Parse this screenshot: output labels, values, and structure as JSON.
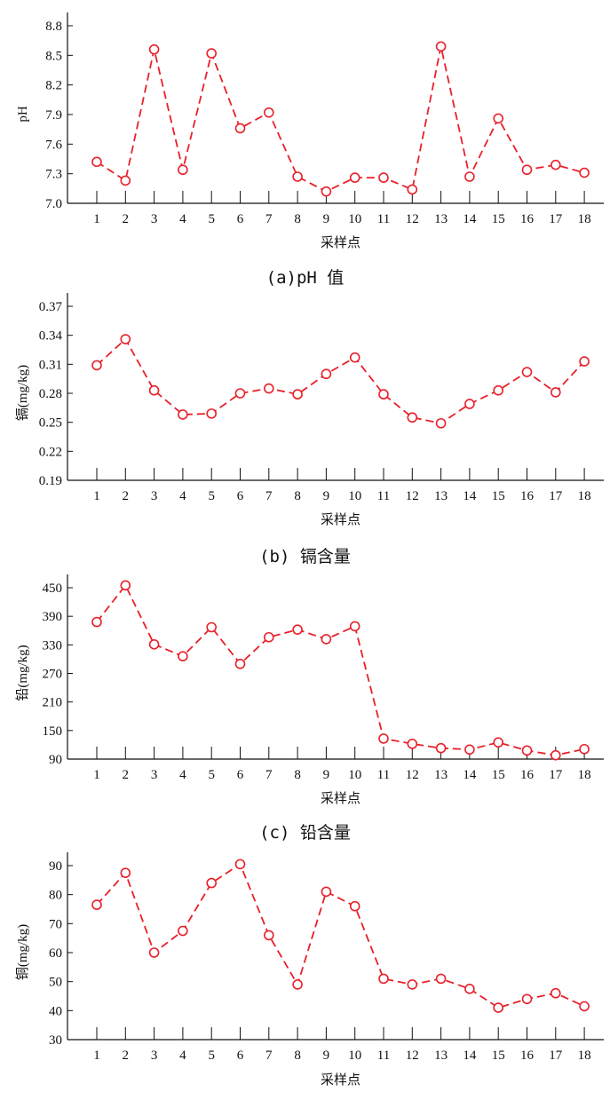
{
  "chart_data": [
    {
      "type": "line",
      "caption": "(a)pH 值",
      "xlabel": "采样点",
      "ylabel": "pH",
      "categories": [
        "1",
        "2",
        "3",
        "4",
        "5",
        "6",
        "7",
        "8",
        "9",
        "10",
        "11",
        "12",
        "13",
        "14",
        "15",
        "16",
        "17",
        "18"
      ],
      "yticks": [
        "7.0",
        "7.3",
        "7.6",
        "7.9",
        "8.2",
        "8.5",
        "8.8"
      ],
      "ylim": [
        7.0,
        8.9
      ],
      "values": [
        7.42,
        7.23,
        8.56,
        7.34,
        8.52,
        7.76,
        7.92,
        7.27,
        7.12,
        7.26,
        7.26,
        7.14,
        8.59,
        7.27,
        7.86,
        7.34,
        7.39,
        7.31
      ],
      "line_color": "#e8202a",
      "line_style": "dashed",
      "marker": "open-circle",
      "grid": false
    },
    {
      "type": "line",
      "caption": "(b) 镉含量",
      "xlabel": "采样点",
      "ylabel": "镉(mg/kg)",
      "categories": [
        "1",
        "2",
        "3",
        "4",
        "5",
        "6",
        "7",
        "8",
        "9",
        "10",
        "11",
        "12",
        "13",
        "14",
        "15",
        "16",
        "17",
        "18"
      ],
      "yticks": [
        "0.19",
        "0.22",
        "0.25",
        "0.28",
        "0.31",
        "0.34",
        "0.37"
      ],
      "ylim": [
        0.19,
        0.38
      ],
      "values": [
        0.309,
        0.336,
        0.283,
        0.258,
        0.259,
        0.28,
        0.285,
        0.279,
        0.3,
        0.317,
        0.279,
        0.255,
        0.249,
        0.269,
        0.283,
        0.302,
        0.281,
        0.313
      ],
      "line_color": "#e8202a",
      "line_style": "dashed",
      "marker": "open-circle",
      "grid": false
    },
    {
      "type": "line",
      "caption": "(c) 铅含量",
      "xlabel": "采样点",
      "ylabel": "铅(mg/kg)",
      "categories": [
        "1",
        "2",
        "3",
        "4",
        "5",
        "6",
        "7",
        "8",
        "9",
        "10",
        "11",
        "12",
        "13",
        "14",
        "15",
        "16",
        "17",
        "18"
      ],
      "yticks": [
        "90",
        "150",
        "210",
        "270",
        "330",
        "390",
        "450"
      ],
      "ylim": [
        90,
        470
      ],
      "values": [
        378,
        455,
        331,
        306,
        367,
        290,
        346,
        362,
        342,
        369,
        133,
        122,
        113,
        110,
        125,
        108,
        98,
        111
      ],
      "line_color": "#e8202a",
      "line_style": "dashed",
      "marker": "open-circle",
      "grid": false
    },
    {
      "type": "line",
      "caption": "",
      "xlabel": "采样点",
      "ylabel": "铜(mg/kg)",
      "categories": [
        "1",
        "2",
        "3",
        "4",
        "5",
        "6",
        "7",
        "8",
        "9",
        "10",
        "11",
        "12",
        "13",
        "14",
        "15",
        "16",
        "17",
        "18"
      ],
      "yticks": [
        "30",
        "40",
        "50",
        "60",
        "70",
        "80",
        "90"
      ],
      "ylim": [
        30,
        95
      ],
      "values": [
        76.5,
        87.5,
        60,
        67.5,
        84,
        90.5,
        66,
        49,
        81,
        76,
        51,
        49,
        51,
        47.5,
        41,
        44,
        46,
        41.5
      ],
      "line_color": "#e8202a",
      "line_style": "dashed",
      "marker": "open-circle",
      "grid": false
    }
  ]
}
